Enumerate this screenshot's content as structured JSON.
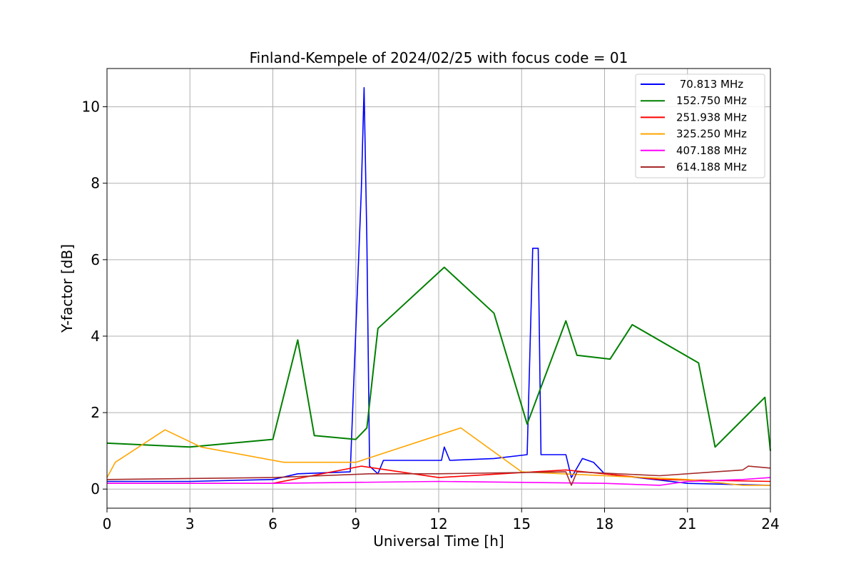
{
  "chart_data": {
    "type": "line",
    "title": "Finland-Kempele of 2024/02/25 with focus code = 01",
    "xlabel": "Universal Time [h]",
    "ylabel": "Y-factor [dB]",
    "xlim": [
      0,
      24
    ],
    "ylim": [
      -0.5,
      11
    ],
    "xticks": [
      0,
      3,
      6,
      9,
      12,
      15,
      18,
      21,
      24
    ],
    "yticks": [
      0,
      2,
      4,
      6,
      8,
      10
    ],
    "grid": true,
    "legend_position": "top-right",
    "series": [
      {
        "name": " 70.813 MHz",
        "color": "#0000ff",
        "points": [
          [
            0,
            0.2
          ],
          [
            3,
            0.2
          ],
          [
            6,
            0.25
          ],
          [
            6.9,
            0.4
          ],
          [
            8.8,
            0.45
          ],
          [
            9.2,
            7.8
          ],
          [
            9.3,
            10.5
          ],
          [
            9.4,
            6.5
          ],
          [
            9.5,
            0.6
          ],
          [
            9.8,
            0.4
          ],
          [
            10,
            0.75
          ],
          [
            12.1,
            0.75
          ],
          [
            12.2,
            1.1
          ],
          [
            12.4,
            0.75
          ],
          [
            14,
            0.8
          ],
          [
            15.2,
            0.9
          ],
          [
            15.4,
            6.3
          ],
          [
            15.6,
            6.3
          ],
          [
            15.7,
            0.9
          ],
          [
            16.6,
            0.9
          ],
          [
            16.8,
            0.3
          ],
          [
            17.2,
            0.8
          ],
          [
            17.6,
            0.7
          ],
          [
            18,
            0.4
          ],
          [
            21,
            0.15
          ],
          [
            24,
            0.1
          ]
        ]
      },
      {
        "name": "152.750 MHz",
        "color": "#008000",
        "points": [
          [
            0,
            1.2
          ],
          [
            3,
            1.1
          ],
          [
            6,
            1.3
          ],
          [
            6.9,
            3.9
          ],
          [
            7.5,
            1.4
          ],
          [
            9,
            1.3
          ],
          [
            9.4,
            1.6
          ],
          [
            9.8,
            4.2
          ],
          [
            12.2,
            5.8
          ],
          [
            14,
            4.6
          ],
          [
            15.2,
            1.7
          ],
          [
            16.6,
            4.4
          ],
          [
            17,
            3.5
          ],
          [
            18.2,
            3.4
          ],
          [
            19,
            4.3
          ],
          [
            21.4,
            3.3
          ],
          [
            22,
            1.1
          ],
          [
            23.8,
            2.4
          ],
          [
            24,
            1.0
          ]
        ]
      },
      {
        "name": "251.938 MHz",
        "color": "#ff0000",
        "points": [
          [
            0,
            0.15
          ],
          [
            6,
            0.15
          ],
          [
            9.2,
            0.6
          ],
          [
            12,
            0.3
          ],
          [
            16.6,
            0.5
          ],
          [
            20,
            0.25
          ],
          [
            24,
            0.2
          ]
        ]
      },
      {
        "name": "325.250 MHz",
        "color": "#ffa500",
        "points": [
          [
            0,
            0.3
          ],
          [
            0.3,
            0.7
          ],
          [
            2.1,
            1.55
          ],
          [
            3.4,
            1.1
          ],
          [
            6.4,
            0.7
          ],
          [
            9,
            0.7
          ],
          [
            12.8,
            1.6
          ],
          [
            15,
            0.45
          ],
          [
            21,
            0.25
          ],
          [
            23,
            0.1
          ],
          [
            24,
            0.1
          ]
        ]
      },
      {
        "name": "407.188 MHz",
        "color": "#ff00ff",
        "points": [
          [
            0,
            0.15
          ],
          [
            6,
            0.15
          ],
          [
            12,
            0.2
          ],
          [
            18,
            0.15
          ],
          [
            20,
            0.1
          ],
          [
            21,
            0.2
          ],
          [
            23,
            0.25
          ],
          [
            24,
            0.3
          ]
        ]
      },
      {
        "name": "614.188 MHz",
        "color": "#a52a2a",
        "points": [
          [
            0,
            0.25
          ],
          [
            6,
            0.3
          ],
          [
            9.5,
            0.4
          ],
          [
            12,
            0.4
          ],
          [
            16.6,
            0.45
          ],
          [
            16.8,
            0.1
          ],
          [
            17,
            0.45
          ],
          [
            20,
            0.35
          ],
          [
            22,
            0.45
          ],
          [
            23,
            0.5
          ],
          [
            23.2,
            0.6
          ],
          [
            24,
            0.55
          ]
        ]
      }
    ]
  }
}
